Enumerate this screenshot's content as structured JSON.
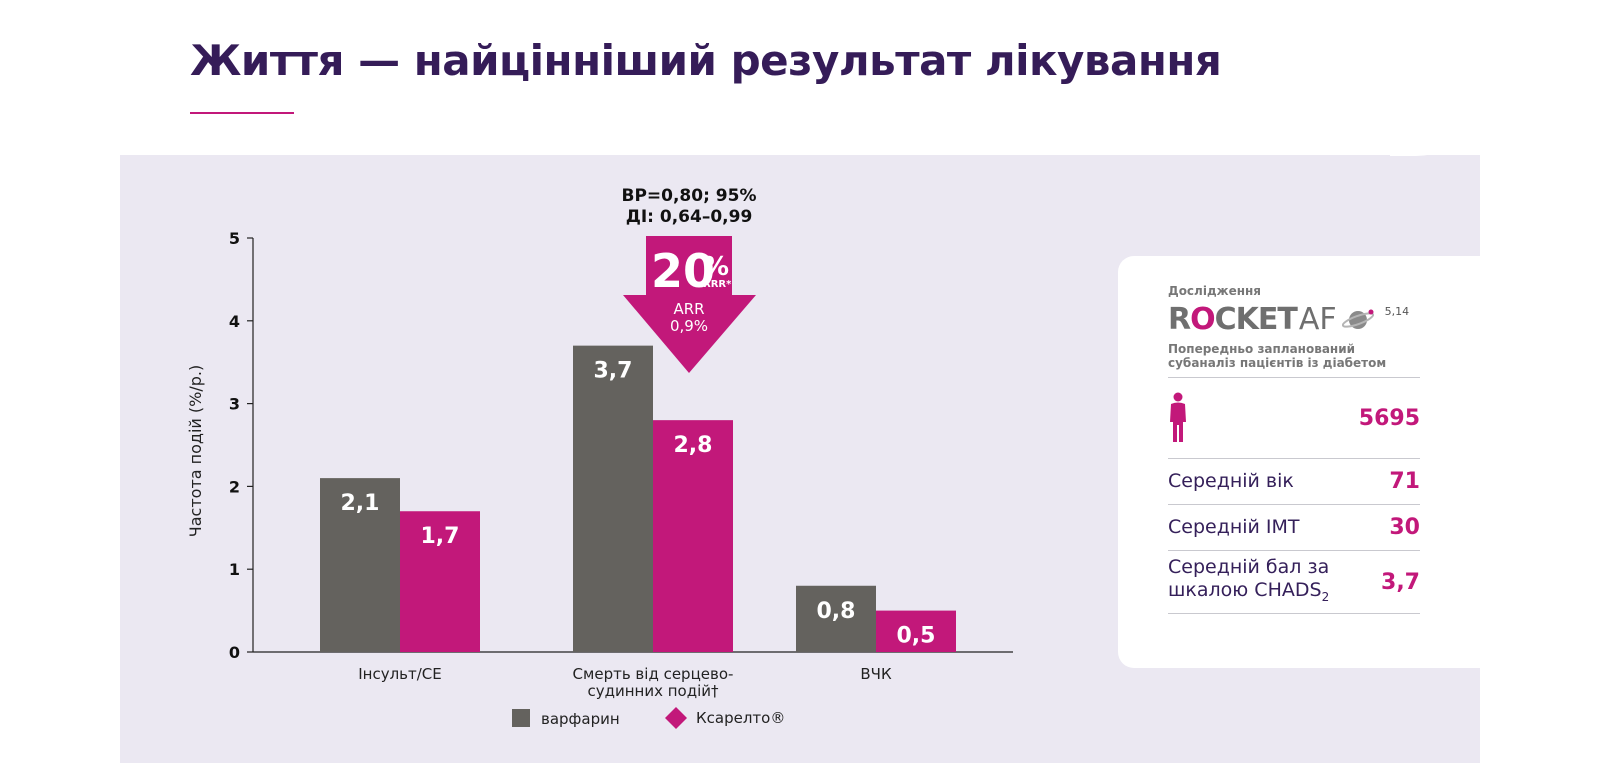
{
  "page": {
    "title": "Життя — найцінніший результат лікування"
  },
  "chart_data": {
    "type": "bar",
    "categories": [
      "Інсульт/СЕ",
      "Смерть від серцево-судинних подій†",
      "ВЧК"
    ],
    "category_lines": [
      [
        "Інсульт/СЕ"
      ],
      [
        "Смерть від серцево-",
        "судинних подій†"
      ],
      [
        "ВЧК"
      ]
    ],
    "series": [
      {
        "name": "варфарин",
        "values": [
          2.1,
          3.7,
          0.8
        ],
        "labels": [
          "2,1",
          "3,7",
          "0,8"
        ],
        "color": "#64625e"
      },
      {
        "name": "Ксарелто®",
        "values": [
          1.7,
          2.8,
          0.5
        ],
        "labels": [
          "1,7",
          "2,8",
          "0,5"
        ],
        "color": "#c2187a"
      }
    ],
    "ylabel": "Частота подій (%/р.)",
    "ylim": [
      0,
      5
    ],
    "yticks": [
      0,
      1,
      2,
      3,
      4,
      5
    ],
    "legend": "bottom-center",
    "annotation": {
      "hr_line1": "ВР=0,80; 95%",
      "hr_line2": "ДІ: 0,64–0,99",
      "rrr_value": "20",
      "rrr_percent": "%",
      "rrr_label": "RRR*",
      "arr_label": "ARR",
      "arr_value": "0,9%",
      "color": "#c2187a"
    }
  },
  "study": {
    "label": "Дослідження",
    "logo_text_r": "R",
    "logo_text_o": "O",
    "logo_text_rest": "CKET",
    "logo_af": "AF",
    "ref": "5,14",
    "subtitle": "Попередньо запланований субаналіз пацієнтів із діабетом",
    "patients_value": "5695",
    "age_label": "Середній вік",
    "age_value": "71",
    "bmi_label": "Середній ІМТ",
    "bmi_value": "30",
    "chads_label_line1": "Середній бал за",
    "chads_label_line2": "шкалою  CHADS",
    "chads_sub": "2",
    "chads_value": "3,7"
  }
}
